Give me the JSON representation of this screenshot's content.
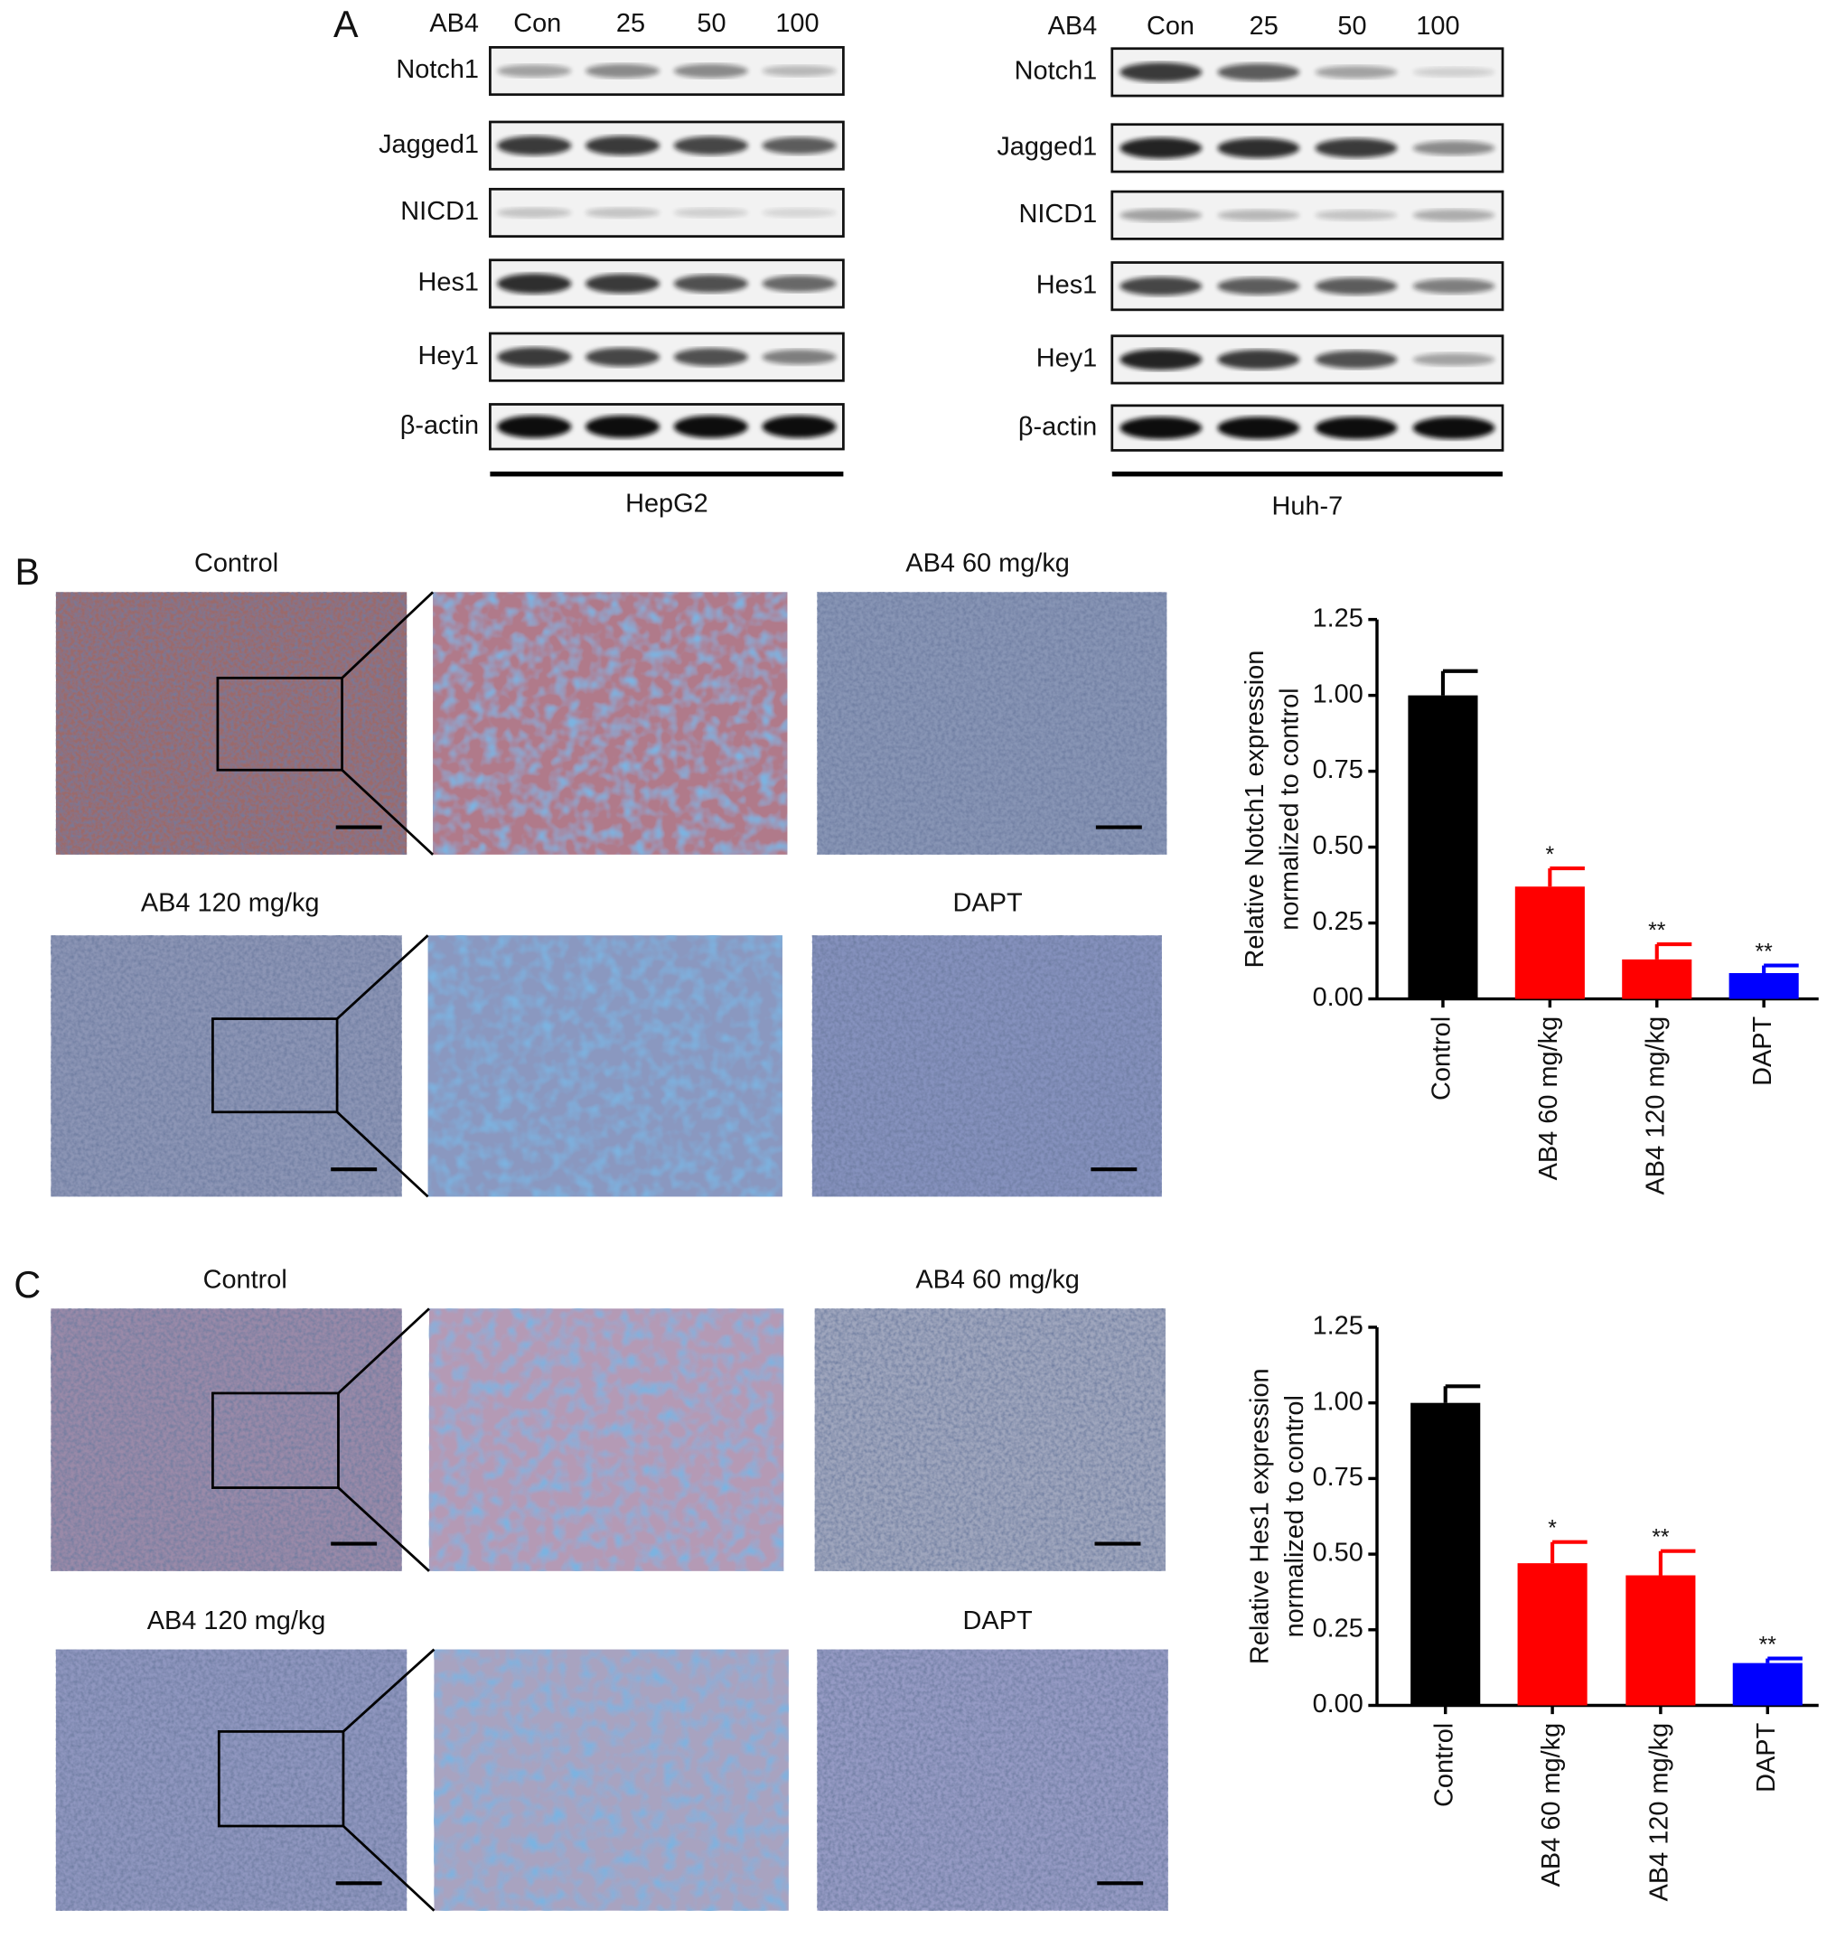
{
  "panel_a": {
    "letter": "A",
    "blots": [
      {
        "treatment_label": "AB4",
        "lanes": [
          "Con",
          "25",
          "50",
          "100"
        ],
        "proteins": [
          "Notch1",
          "Jagged1",
          "NICD1",
          "Hes1",
          "Hey1",
          "β-actin"
        ],
        "cell_line": "HepG2"
      },
      {
        "treatment_label": "AB4",
        "lanes": [
          "Con",
          "25",
          "50",
          "100"
        ],
        "proteins": [
          "Notch1",
          "Jagged1",
          "NICD1",
          "Hes1",
          "Hey1",
          "β-actin"
        ],
        "cell_line": "Huh-7"
      }
    ]
  },
  "panel_b": {
    "letter": "B",
    "images": [
      "Control",
      "AB4 60 mg/kg",
      "AB4 120 mg/kg",
      "DAPT"
    ]
  },
  "panel_c": {
    "letter": "C",
    "images": [
      "Control",
      "AB4 60 mg/kg",
      "AB4 120 mg/kg",
      "DAPT"
    ]
  },
  "chart_data": [
    {
      "type": "bar",
      "ylabel": [
        "Relative Notch1 expression",
        "normalized to control"
      ],
      "categories": [
        "Control",
        "AB4 60 mg/kg",
        "AB4 120 mg/kg",
        "DAPT"
      ],
      "values": [
        1.0,
        0.37,
        0.13,
        0.085
      ],
      "errors": [
        0.08,
        0.06,
        0.05,
        0.025
      ],
      "colors": [
        "#000000",
        "#ff0000",
        "#ff0000",
        "#0000ff"
      ],
      "significance": [
        null,
        "*",
        "**",
        "**"
      ],
      "ylim": [
        0,
        1.25
      ],
      "yticks": [
        {
          "value": 0,
          "label": "0.00"
        },
        {
          "value": 0.25,
          "label": "0.25"
        },
        {
          "value": 0.5,
          "label": "0.50"
        },
        {
          "value": 0.75,
          "label": "0.75"
        },
        {
          "value": 1,
          "label": "1.00"
        },
        {
          "value": 1.25,
          "label": "1.25"
        }
      ]
    },
    {
      "type": "bar",
      "ylabel": [
        "Relative Hes1 expression",
        "normalized to control"
      ],
      "categories": [
        "Control",
        "AB4 60 mg/kg",
        "AB4 120 mg/kg",
        "DAPT"
      ],
      "values": [
        1.0,
        0.47,
        0.43,
        0.14
      ],
      "errors": [
        0.055,
        0.07,
        0.08,
        0.015
      ],
      "colors": [
        "#000000",
        "#ff0000",
        "#ff0000",
        "#0000ff"
      ],
      "significance": [
        null,
        "*",
        "**",
        "**"
      ],
      "ylim": [
        0,
        1.25
      ],
      "yticks": [
        {
          "value": 0,
          "label": "0.00"
        },
        {
          "value": 0.25,
          "label": "0.25"
        },
        {
          "value": 0.5,
          "label": "0.50"
        },
        {
          "value": 0.75,
          "label": "0.75"
        },
        {
          "value": 1,
          "label": "1.00"
        },
        {
          "value": 1.25,
          "label": "1.25"
        }
      ]
    }
  ]
}
